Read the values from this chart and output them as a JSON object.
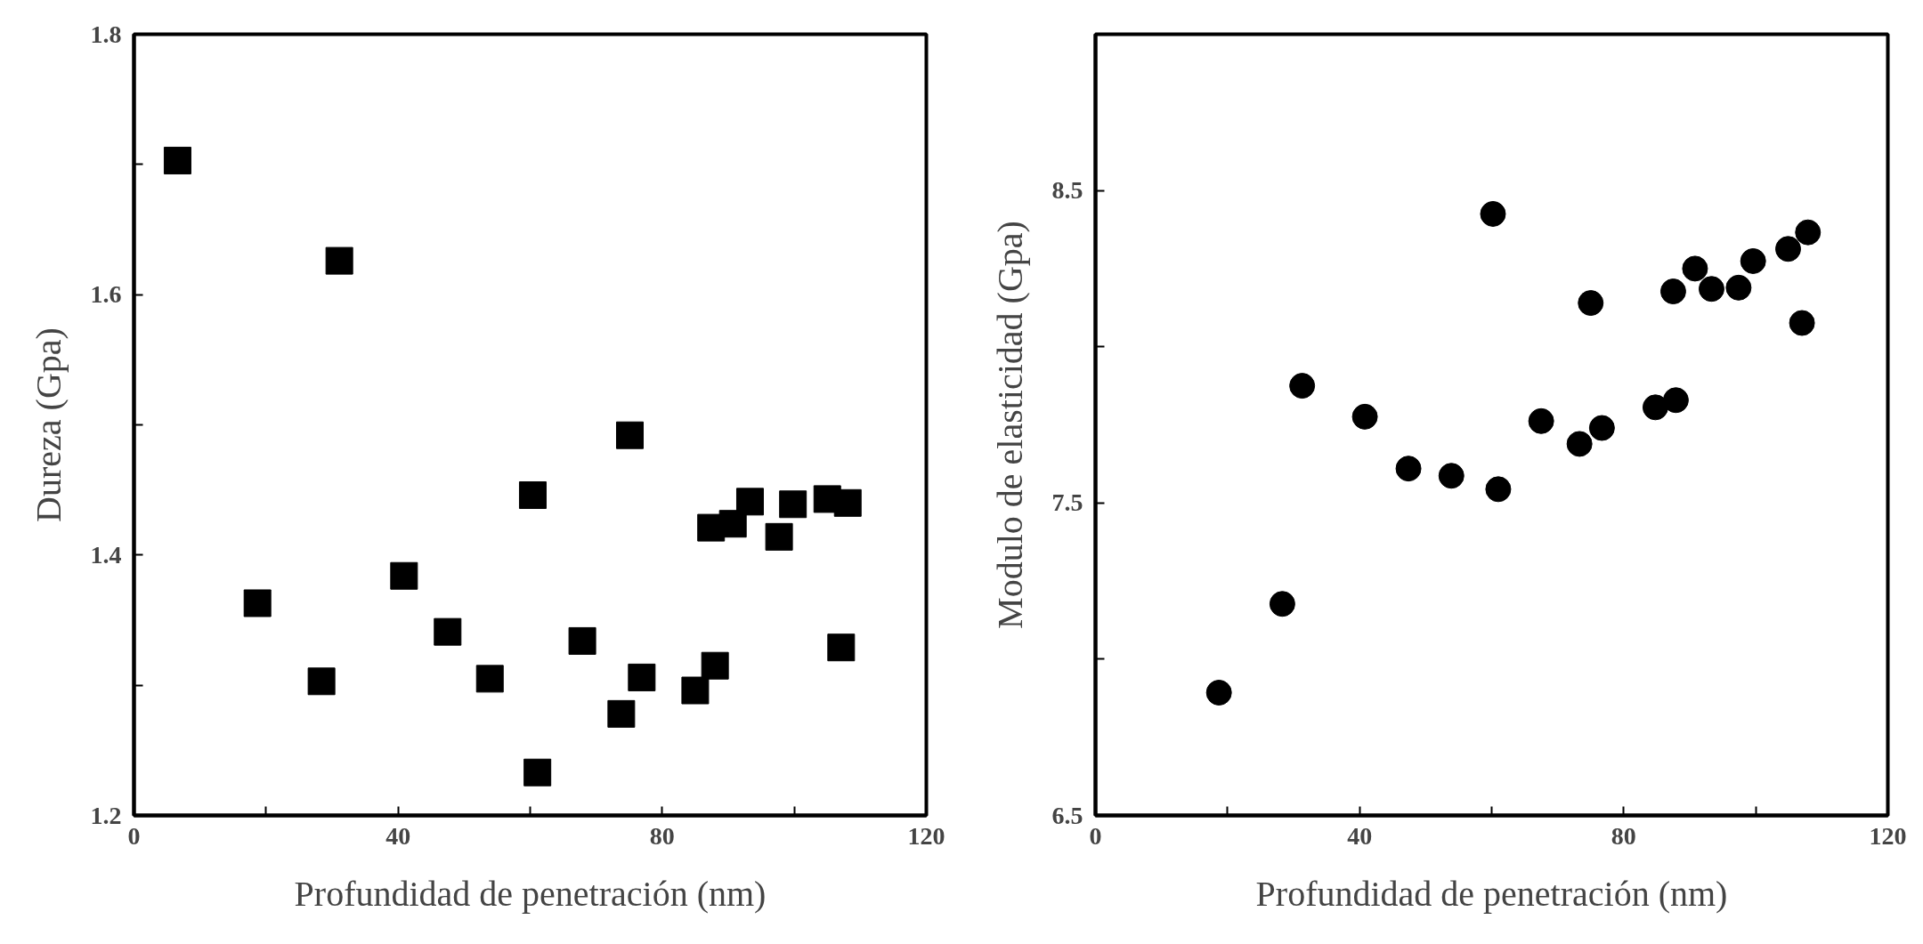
{
  "chart_data": [
    {
      "type": "scatter",
      "xlabel": "Profundidad de penetración (nm)",
      "ylabel": "Dureza (Gpa)",
      "marker": "square",
      "grid": false,
      "xlim": [
        0,
        120
      ],
      "ylim": [
        1.2,
        1.8
      ],
      "xticks": [
        0,
        {
          "value": 20,
          "label": null
        },
        40,
        {
          "value": 60,
          "label": null
        },
        80,
        {
          "value": 100,
          "label": null
        },
        120
      ],
      "yticks": [
        1.2,
        {
          "value": 1.3,
          "label": null
        },
        1.4,
        {
          "value": 1.5,
          "label": null
        },
        1.6,
        {
          "value": 1.7,
          "label": null
        },
        1.8
      ],
      "series": [
        {
          "color": "#000000",
          "x": [
            6.6,
            18.7,
            28.4,
            31.1,
            40.9,
            47.5,
            53.9,
            60.4,
            61.1,
            67.9,
            73.8,
            75.1,
            76.9,
            85.0,
            87.4,
            88.0,
            90.7,
            93.3,
            97.7,
            99.8,
            105.0,
            108.1,
            107.1
          ],
          "values": [
            1.703,
            1.363,
            1.303,
            1.626,
            1.384,
            1.341,
            1.305,
            1.446,
            1.233,
            1.334,
            1.278,
            1.492,
            1.306,
            1.296,
            1.421,
            1.315,
            1.424,
            1.441,
            1.414,
            1.439,
            1.443,
            1.44,
            1.329
          ]
        }
      ]
    },
    {
      "type": "scatter",
      "xlabel": "Profundidad de penetración (nm)",
      "ylabel": "Modulo de elasticidad (Gpa)",
      "marker": "circle",
      "grid": false,
      "xlim": [
        0,
        120
      ],
      "ylim": [
        6.5,
        9.0
      ],
      "xticks": [
        0,
        {
          "value": 20,
          "label": null
        },
        40,
        {
          "value": 60,
          "label": null
        },
        80,
        {
          "value": 100,
          "label": null
        },
        120
      ],
      "yticks": [
        6.5,
        {
          "value": 7.0,
          "label": null
        },
        7.5,
        {
          "value": 8.0,
          "label": null
        },
        8.5
      ],
      "series": [
        {
          "color": "#000000",
          "x": [
            18.7,
            28.3,
            31.3,
            40.8,
            47.4,
            53.9,
            60.2,
            61.0,
            67.5,
            73.3,
            75.0,
            76.7,
            84.8,
            87.9,
            87.5,
            90.8,
            93.3,
            97.4,
            99.6,
            104.9,
            107.9,
            107.0
          ],
          "values": [
            6.893,
            7.177,
            7.875,
            7.776,
            7.61,
            7.587,
            8.425,
            7.544,
            7.762,
            7.689,
            8.14,
            7.74,
            7.806,
            7.829,
            8.177,
            8.25,
            8.185,
            8.189,
            8.274,
            8.313,
            8.366,
            8.076
          ]
        }
      ]
    }
  ]
}
